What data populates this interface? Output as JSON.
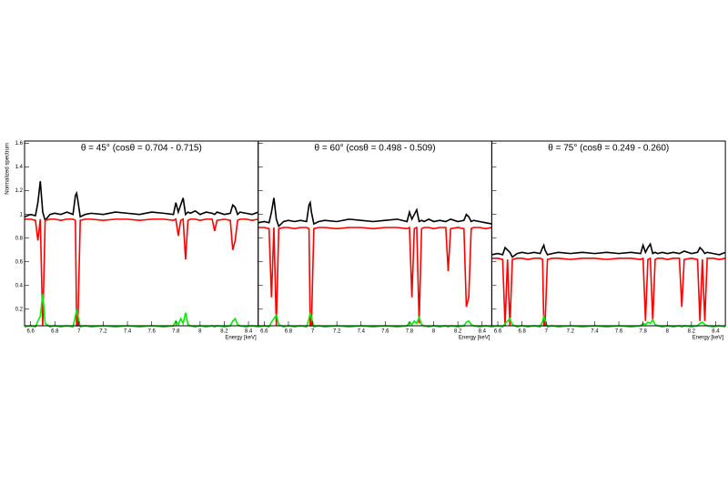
{
  "chart_data": [
    {
      "type": "line",
      "title": "θ = 45° (cosθ = 0.704 - 0.715)",
      "x_label": "Energy [keV]",
      "y_label": "Normalized spectrum",
      "xlim": [
        6.55,
        8.48
      ],
      "ylim": [
        0.06,
        1.62
      ],
      "xticks": [
        6.6,
        6.8,
        7,
        7.2,
        7.4,
        7.6,
        7.8,
        8,
        8.2,
        8.4
      ],
      "yticks": [
        0.2,
        0.4,
        0.6,
        0.8,
        1,
        1.2,
        1.4,
        1.6
      ],
      "x": [
        6.55,
        6.6,
        6.64,
        6.66,
        6.68,
        6.7,
        6.72,
        6.76,
        6.8,
        6.85,
        6.9,
        6.95,
        6.97,
        6.98,
        6.99,
        7.01,
        7.05,
        7.1,
        7.2,
        7.3,
        7.4,
        7.5,
        7.6,
        7.7,
        7.78,
        7.8,
        7.82,
        7.84,
        7.86,
        7.88,
        7.9,
        7.92,
        7.96,
        8.0,
        8.05,
        8.1,
        8.12,
        8.14,
        8.2,
        8.25,
        8.27,
        8.29,
        8.31,
        8.33,
        8.38,
        8.43,
        8.48
      ],
      "series": [
        {
          "color": "#000000",
          "values": [
            0.98,
            1.0,
            0.99,
            1.1,
            1.28,
            1.02,
            0.95,
            1.0,
            1.01,
            1.0,
            1.02,
            1.0,
            1.16,
            1.18,
            1.12,
            0.98,
            1.0,
            1.01,
            1.0,
            1.02,
            1.01,
            1.0,
            1.02,
            1.01,
            1.0,
            1.1,
            1.02,
            1.08,
            1.14,
            1.0,
            1.02,
            1.01,
            1.03,
            1.0,
            1.02,
            1.01,
            1.0,
            1.02,
            1.0,
            1.01,
            1.08,
            1.06,
            1.0,
            1.02,
            1.01,
            1.0,
            1.02
          ]
        },
        {
          "color": "#ff0000",
          "values": [
            0.96,
            0.96,
            0.95,
            0.78,
            0.96,
            0.06,
            0.95,
            0.96,
            0.96,
            0.95,
            0.96,
            0.96,
            0.95,
            0.06,
            0.06,
            0.95,
            0.96,
            0.96,
            0.95,
            0.96,
            0.96,
            0.95,
            0.96,
            0.96,
            0.95,
            0.96,
            0.82,
            0.95,
            0.96,
            0.62,
            0.95,
            0.96,
            0.96,
            0.95,
            0.96,
            0.96,
            0.86,
            0.95,
            0.96,
            0.95,
            0.7,
            0.78,
            0.95,
            0.96,
            0.96,
            0.95,
            0.96
          ]
        },
        {
          "color": "#00ee00",
          "values": [
            0.05,
            0.06,
            0.05,
            0.1,
            0.14,
            0.33,
            0.08,
            0.05,
            0.06,
            0.05,
            0.06,
            0.05,
            0.14,
            0.2,
            0.15,
            0.05,
            0.06,
            0.05,
            0.06,
            0.05,
            0.06,
            0.05,
            0.06,
            0.05,
            0.06,
            0.1,
            0.07,
            0.12,
            0.08,
            0.17,
            0.07,
            0.06,
            0.05,
            0.06,
            0.05,
            0.06,
            0.05,
            0.06,
            0.05,
            0.06,
            0.1,
            0.12,
            0.07,
            0.06,
            0.05,
            0.06,
            0.05
          ]
        }
      ]
    },
    {
      "type": "line",
      "title": "θ = 60° (cosθ = 0.498 - 0.509)",
      "x_label": "Energy [keV]",
      "xlim": [
        6.55,
        8.48
      ],
      "ylim": [
        0.06,
        1.62
      ],
      "xticks": [
        6.6,
        6.8,
        7,
        7.2,
        7.4,
        7.6,
        7.8,
        8,
        8.2,
        8.4
      ],
      "yticks": [
        0.2,
        0.4,
        0.6,
        0.8,
        1,
        1.2,
        1.4,
        1.6
      ],
      "x": [
        6.55,
        6.6,
        6.64,
        6.66,
        6.68,
        6.7,
        6.72,
        6.76,
        6.8,
        6.85,
        6.9,
        6.95,
        6.97,
        6.98,
        6.99,
        7.01,
        7.05,
        7.1,
        7.2,
        7.3,
        7.4,
        7.5,
        7.6,
        7.7,
        7.78,
        7.8,
        7.82,
        7.84,
        7.86,
        7.88,
        7.9,
        7.92,
        7.96,
        8.0,
        8.05,
        8.1,
        8.12,
        8.14,
        8.2,
        8.25,
        8.27,
        8.29,
        8.31,
        8.33,
        8.38,
        8.43,
        8.48
      ],
      "series": [
        {
          "color": "#000000",
          "values": [
            0.93,
            0.94,
            0.93,
            1.02,
            1.14,
            0.96,
            0.9,
            0.94,
            0.95,
            0.94,
            0.95,
            0.94,
            1.08,
            1.1,
            1.02,
            0.92,
            0.94,
            0.95,
            0.94,
            0.96,
            0.95,
            0.94,
            0.95,
            0.96,
            0.94,
            1.02,
            0.96,
            1.0,
            1.04,
            0.94,
            0.95,
            0.94,
            0.96,
            0.94,
            0.95,
            0.94,
            0.95,
            0.96,
            0.94,
            0.95,
            1.0,
            0.98,
            0.94,
            0.95,
            0.94,
            0.93,
            0.92
          ]
        },
        {
          "color": "#ff0000",
          "values": [
            0.89,
            0.89,
            0.88,
            0.3,
            0.89,
            0.06,
            0.88,
            0.89,
            0.89,
            0.88,
            0.89,
            0.89,
            0.88,
            0.06,
            0.06,
            0.88,
            0.89,
            0.89,
            0.88,
            0.89,
            0.89,
            0.88,
            0.89,
            0.89,
            0.88,
            0.89,
            0.3,
            0.88,
            0.89,
            0.08,
            0.88,
            0.89,
            0.89,
            0.88,
            0.89,
            0.89,
            0.52,
            0.88,
            0.89,
            0.88,
            0.22,
            0.3,
            0.88,
            0.89,
            0.89,
            0.88,
            0.89
          ]
        },
        {
          "color": "#00ee00",
          "values": [
            0.05,
            0.06,
            0.05,
            0.09,
            0.12,
            0.15,
            0.07,
            0.05,
            0.06,
            0.05,
            0.06,
            0.05,
            0.12,
            0.17,
            0.13,
            0.05,
            0.06,
            0.05,
            0.06,
            0.05,
            0.06,
            0.05,
            0.06,
            0.05,
            0.06,
            0.09,
            0.07,
            0.1,
            0.08,
            0.13,
            0.07,
            0.06,
            0.05,
            0.06,
            0.05,
            0.06,
            0.05,
            0.06,
            0.05,
            0.06,
            0.09,
            0.1,
            0.07,
            0.06,
            0.05,
            0.06,
            0.05
          ]
        }
      ]
    },
    {
      "type": "line",
      "title": "θ = 75° (cosθ = 0.249 - 0.260)",
      "x_label": "Energy [keV]",
      "xlim": [
        6.55,
        8.48
      ],
      "ylim": [
        0.06,
        1.62
      ],
      "xticks": [
        6.6,
        6.8,
        7,
        7.2,
        7.4,
        7.6,
        7.8,
        8,
        8.2,
        8.4
      ],
      "yticks": [
        0.2,
        0.4,
        0.6,
        0.8,
        1,
        1.2,
        1.4,
        1.6
      ],
      "x": [
        6.55,
        6.6,
        6.64,
        6.66,
        6.68,
        6.7,
        6.72,
        6.76,
        6.8,
        6.85,
        6.9,
        6.95,
        6.97,
        6.98,
        6.99,
        7.01,
        7.05,
        7.1,
        7.2,
        7.3,
        7.4,
        7.5,
        7.6,
        7.7,
        7.78,
        7.8,
        7.82,
        7.84,
        7.86,
        7.88,
        7.9,
        7.92,
        7.96,
        8.0,
        8.05,
        8.1,
        8.12,
        8.14,
        8.2,
        8.25,
        8.27,
        8.29,
        8.31,
        8.33,
        8.38,
        8.43,
        8.48
      ],
      "series": [
        {
          "color": "#000000",
          "values": [
            0.66,
            0.67,
            0.66,
            0.72,
            0.7,
            0.68,
            0.64,
            0.67,
            0.68,
            0.67,
            0.68,
            0.67,
            0.72,
            0.74,
            0.7,
            0.66,
            0.67,
            0.68,
            0.67,
            0.68,
            0.67,
            0.68,
            0.67,
            0.68,
            0.67,
            0.74,
            0.68,
            0.72,
            0.75,
            0.67,
            0.68,
            0.67,
            0.68,
            0.67,
            0.68,
            0.67,
            0.68,
            0.69,
            0.67,
            0.68,
            0.72,
            0.7,
            0.67,
            0.68,
            0.67,
            0.66,
            0.68
          ]
        },
        {
          "color": "#ff0000",
          "values": [
            0.63,
            0.63,
            0.62,
            0.06,
            0.62,
            0.06,
            0.62,
            0.63,
            0.63,
            0.62,
            0.63,
            0.63,
            0.62,
            0.06,
            0.06,
            0.62,
            0.63,
            0.63,
            0.62,
            0.63,
            0.63,
            0.62,
            0.63,
            0.63,
            0.62,
            0.63,
            0.1,
            0.62,
            0.63,
            0.1,
            0.62,
            0.63,
            0.63,
            0.62,
            0.63,
            0.63,
            0.22,
            0.62,
            0.63,
            0.62,
            0.1,
            0.62,
            0.1,
            0.63,
            0.63,
            0.62,
            0.63
          ]
        },
        {
          "color": "#00ee00",
          "values": [
            0.05,
            0.06,
            0.05,
            0.08,
            0.1,
            0.12,
            0.07,
            0.05,
            0.06,
            0.05,
            0.06,
            0.05,
            0.1,
            0.14,
            0.11,
            0.05,
            0.06,
            0.05,
            0.06,
            0.05,
            0.06,
            0.05,
            0.06,
            0.05,
            0.06,
            0.08,
            0.07,
            0.09,
            0.08,
            0.11,
            0.07,
            0.06,
            0.05,
            0.06,
            0.05,
            0.06,
            0.05,
            0.06,
            0.05,
            0.06,
            0.08,
            0.09,
            0.07,
            0.06,
            0.05,
            0.06,
            0.05
          ]
        }
      ]
    }
  ]
}
